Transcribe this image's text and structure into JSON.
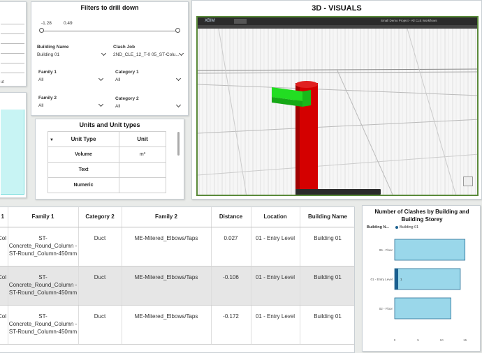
{
  "slicer": {
    "title": "Filters to drill down",
    "range_min": "-1.28",
    "range_max": "0.49",
    "building_label": "Building Name",
    "building_value": "Building 01",
    "clash_label": "Clash Job",
    "clash_value": "2ND_CLE_12_T-0 05_ST-Colu...",
    "family1_label": "Family 1",
    "family1_value": "All",
    "category1_label": "Category 1",
    "category1_value": "All",
    "family2_label": "Family 2",
    "family2_value": "All",
    "category2_label": "Category 2",
    "category2_value": "All"
  },
  "units": {
    "title": "Units and Unit types",
    "col_type": "Unit Type",
    "col_unit": "Unit",
    "rows": [
      {
        "type": "Volume",
        "unit": "m³"
      },
      {
        "type": "Text",
        "unit": ""
      },
      {
        "type": "Numeric",
        "unit": ""
      }
    ]
  },
  "viewer": {
    "title": "3D - VISUALS",
    "app_name": "XBIM",
    "project_name": "Small Demo Project - All CLE Workflows",
    "colors": {
      "bg": "#f4f4f4",
      "column": "#d40000",
      "beam": "#22dd22",
      "border": "#5a8a3a"
    }
  },
  "grid": {
    "columns": [
      "1",
      "Family 1",
      "Category 2",
      "Family 2",
      "Distance",
      "Location",
      "Building Name"
    ],
    "rows": [
      {
        "c0": "Col",
        "family1": "ST-Concrete_Round_Column - ST-Round_Column-450mm",
        "category2": "Duct",
        "family2": "ME-Mitered_Elbows/Taps",
        "distance": "0.027",
        "location": "01 - Entry Level",
        "building": "Building 01"
      },
      {
        "c0": "Col",
        "family1": "ST-Concrete_Round_Column - ST-Round_Column-450mm",
        "category2": "Duct",
        "family2": "ME-Mitered_Elbows/Taps",
        "distance": "-0.106",
        "location": "01 - Entry Level",
        "building": "Building 01"
      },
      {
        "c0": "Col",
        "family1": "ST-Concrete_Round_Column - ST-Round_Column-450mm",
        "category2": "Duct",
        "family2": "ME-Mitered_Elbows/Taps",
        "distance": "-0.172",
        "location": "01 - Entry Level",
        "building": "Building 01"
      }
    ]
  },
  "chart_data": {
    "type": "bar",
    "title": "Number of Clashes by Building and Building Storey",
    "legend_label": "Building N...",
    "series": [
      {
        "name": "Building 01",
        "values": [
          15,
          14,
          12
        ]
      }
    ],
    "categories": [
      "06 - Floor",
      "01 - Entry Level",
      "02 - Floor"
    ],
    "highlight_value_label": "1",
    "xticks": [
      "0",
      "5",
      "10",
      "15"
    ],
    "xlim": [
      0,
      15.5
    ],
    "colors": {
      "bar": "#9ad7ea",
      "highlight": "#1a5f8f"
    }
  },
  "left_stub": {
    "label": "ut"
  }
}
